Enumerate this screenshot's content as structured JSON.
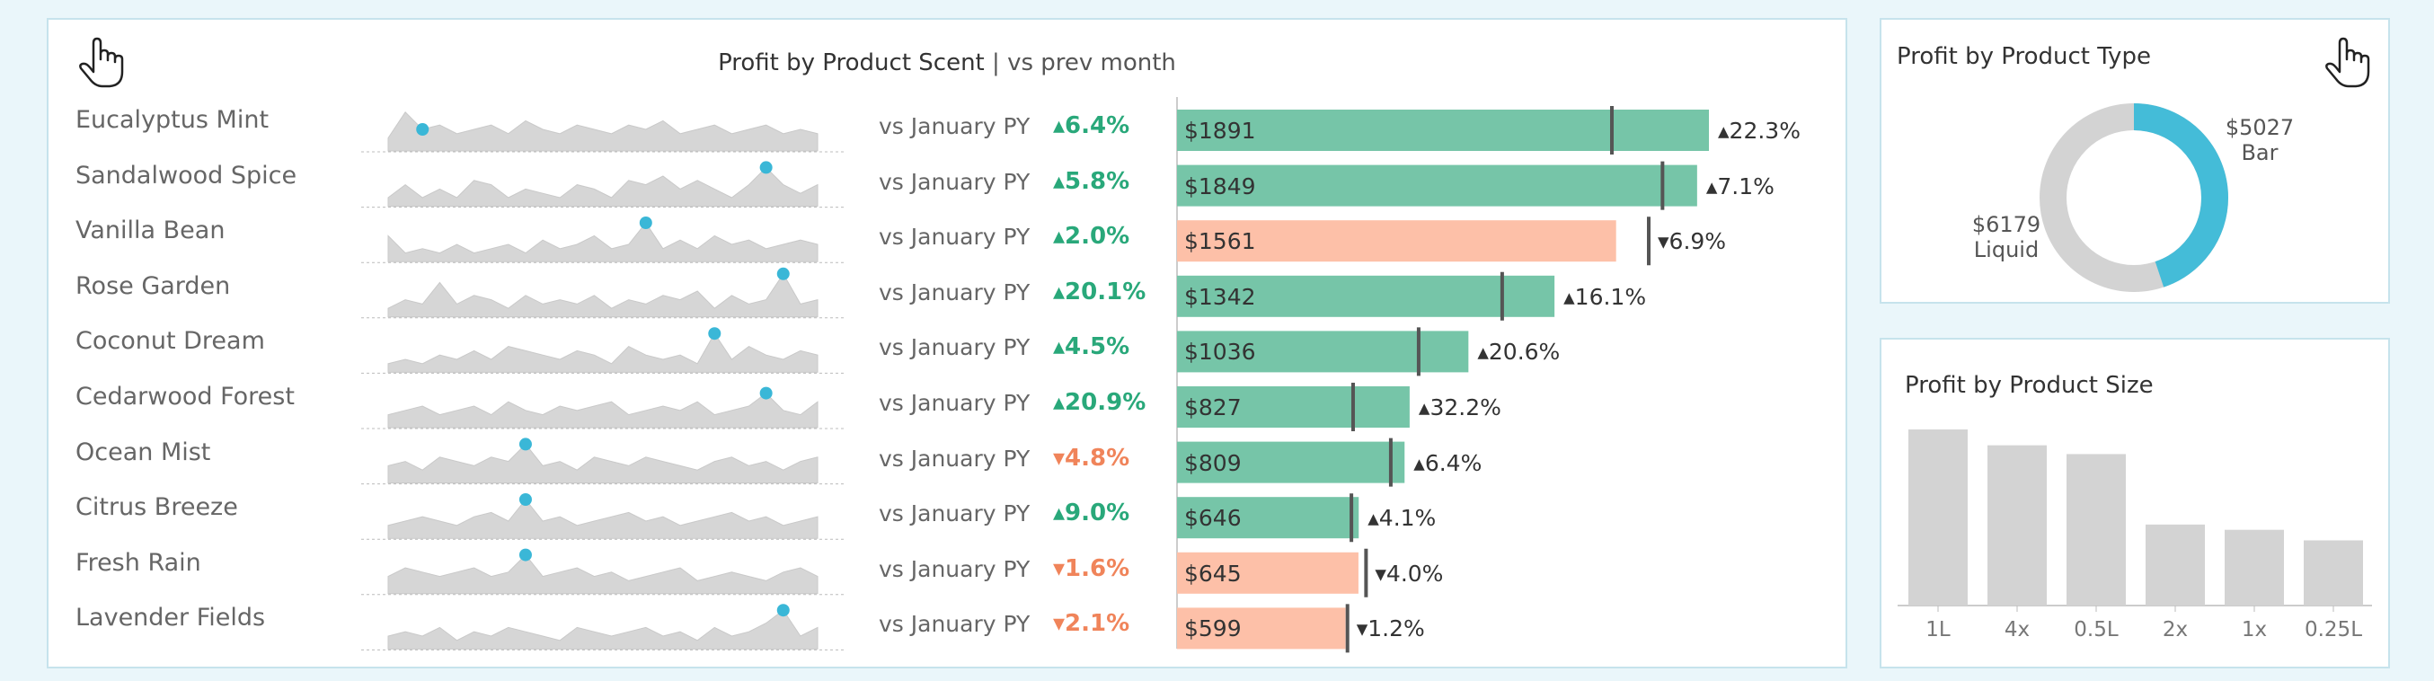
{
  "main": {
    "title": "Profit by Product Scent",
    "subtitle": "vs prev month",
    "title_separator": "|",
    "hand_icon": "pointing-hand-icon",
    "comparison_label": "vs January PY",
    "rows": [
      {
        "name": "Eucalyptus Mint",
        "pct_label": "▴6.4%",
        "bar_label": "$1891",
        "change_label": "▴22.3%"
      },
      {
        "name": "Sandalwood Spice",
        "pct_label": "▴5.8%",
        "bar_label": "$1849",
        "change_label": "▴7.1%"
      },
      {
        "name": "Vanilla Bean",
        "pct_label": "▴2.0%",
        "bar_label": "$1561",
        "change_label": "▾6.9%"
      },
      {
        "name": "Rose Garden",
        "pct_label": "▴20.1%",
        "bar_label": "$1342",
        "change_label": "▴16.1%"
      },
      {
        "name": "Coconut Dream",
        "pct_label": "▴4.5%",
        "bar_label": "$1036",
        "change_label": "▴20.6%"
      },
      {
        "name": "Cedarwood Forest",
        "pct_label": "▴20.9%",
        "bar_label": "$827",
        "change_label": "▴32.2%"
      },
      {
        "name": "Ocean Mist",
        "pct_label": "▾4.8%",
        "bar_label": "$809",
        "change_label": "▴6.4%"
      },
      {
        "name": "Citrus Breeze",
        "pct_label": "▴9.0%",
        "bar_label": "$646",
        "change_label": "▴4.1%"
      },
      {
        "name": "Fresh Rain",
        "pct_label": "▾1.6%",
        "bar_label": "$645",
        "change_label": "▾4.0%"
      },
      {
        "name": "Lavender Fields",
        "pct_label": "▾2.1%",
        "bar_label": "$599",
        "change_label": "▾1.2%"
      }
    ]
  },
  "type_panel": {
    "title": "Profit by Product Type",
    "hand_icon": "pointing-hand-icon"
  },
  "size_panel": {
    "title": "Profit by Product Size"
  },
  "colors": {
    "positive": "#29a87a",
    "negative": "#f0845a",
    "bar_up": "#76c5a8",
    "bar_down": "#fdc0a8",
    "spark": "#d6d6d6",
    "spark_marker": "#3ab7d7",
    "donut_bar": "#44bcd8",
    "donut_liquid": "#d3d3d3",
    "size_bar": "#d3d3d3"
  },
  "chart_data": [
    {
      "type": "bar",
      "title": "Profit by Product Scent",
      "subtitle": "vs prev month",
      "categories": [
        "Eucalyptus Mint",
        "Sandalwood Spice",
        "Vanilla Bean",
        "Rose Garden",
        "Coconut Dream",
        "Cedarwood Forest",
        "Ocean Mist",
        "Citrus Breeze",
        "Fresh Rain",
        "Lavender Fields"
      ],
      "values": [
        1891,
        1849,
        1561,
        1342,
        1036,
        827,
        809,
        646,
        645,
        599
      ],
      "previous_month_values": [
        1546,
        1726,
        1677,
        1156,
        859,
        626,
        760,
        620,
        672,
        606
      ],
      "change_vs_prev_month_pct": [
        22.3,
        7.1,
        -6.9,
        16.1,
        20.6,
        32.2,
        6.4,
        4.1,
        -4.0,
        -1.2
      ],
      "vs_january_py_pct": [
        6.4,
        5.8,
        2.0,
        20.1,
        4.5,
        20.9,
        -4.8,
        9.0,
        -1.6,
        -2.1
      ],
      "xlim": [
        0,
        2100
      ]
    },
    {
      "type": "line",
      "description_of_series": "sparkline trends per scent",
      "series": [
        {
          "values": [
            3,
            9,
            5,
            6,
            4,
            5,
            6,
            4,
            7,
            5,
            4,
            6,
            5,
            4,
            6,
            5,
            7,
            4,
            5,
            6,
            4,
            5,
            6,
            4,
            5,
            4
          ],
          "peak_index": 2
        },
        {
          "values": [
            2,
            5,
            2,
            4,
            2,
            6,
            5,
            2,
            4,
            3,
            2,
            5,
            4,
            2,
            6,
            5,
            7,
            4,
            6,
            4,
            2,
            5,
            9,
            5,
            3,
            5
          ],
          "peak_index": 22
        },
        {
          "values": [
            6,
            2,
            3,
            2,
            4,
            2,
            3,
            4,
            2,
            5,
            3,
            4,
            6,
            3,
            4,
            9,
            3,
            5,
            3,
            6,
            4,
            5,
            3,
            4,
            5,
            4
          ],
          "peak_index": 15
        },
        {
          "values": [
            2,
            4,
            3,
            8,
            3,
            5,
            4,
            2,
            5,
            3,
            4,
            3,
            5,
            2,
            4,
            3,
            5,
            4,
            6,
            2,
            5,
            3,
            4,
            10,
            3,
            4
          ],
          "peak_index": 23
        },
        {
          "values": [
            2,
            3,
            2,
            4,
            3,
            5,
            3,
            6,
            5,
            4,
            3,
            5,
            4,
            2,
            6,
            4,
            3,
            4,
            2,
            9,
            3,
            6,
            4,
            3,
            5,
            4
          ],
          "peak_index": 19
        },
        {
          "values": [
            3,
            4,
            5,
            3,
            4,
            5,
            3,
            6,
            4,
            3,
            5,
            4,
            5,
            6,
            3,
            4,
            5,
            4,
            6,
            3,
            4,
            5,
            8,
            4,
            3,
            6
          ],
          "peak_index": 22
        },
        {
          "values": [
            4,
            5,
            3,
            6,
            5,
            4,
            6,
            5,
            9,
            4,
            5,
            3,
            6,
            5,
            4,
            6,
            5,
            4,
            3,
            5,
            6,
            4,
            5,
            3,
            5,
            6
          ],
          "peak_index": 8
        },
        {
          "values": [
            3,
            4,
            5,
            4,
            3,
            5,
            6,
            4,
            9,
            4,
            5,
            3,
            4,
            5,
            6,
            4,
            5,
            3,
            4,
            5,
            6,
            4,
            5,
            3,
            4,
            5
          ],
          "peak_index": 8
        },
        {
          "values": [
            4,
            6,
            5,
            4,
            5,
            6,
            4,
            5,
            9,
            4,
            5,
            6,
            4,
            5,
            3,
            4,
            5,
            6,
            3,
            4,
            5,
            4,
            3,
            5,
            6,
            4
          ],
          "peak_index": 8
        },
        {
          "values": [
            3,
            4,
            3,
            5,
            2,
            4,
            3,
            5,
            4,
            3,
            2,
            5,
            4,
            3,
            4,
            5,
            3,
            4,
            2,
            5,
            3,
            4,
            6,
            9,
            3,
            5
          ],
          "peak_index": 23
        }
      ]
    },
    {
      "type": "pie",
      "title": "Profit by Product Type",
      "categories": [
        "Bar",
        "Liquid"
      ],
      "values": [
        5027,
        6179
      ],
      "labels": [
        "$5027",
        "$6179"
      ]
    },
    {
      "type": "bar",
      "title": "Profit by Product Size",
      "categories": [
        "1L",
        "4x",
        "0.5L",
        "2x",
        "1x",
        "0.25L"
      ],
      "values": [
        100,
        91,
        86,
        46,
        43,
        37
      ]
    }
  ]
}
